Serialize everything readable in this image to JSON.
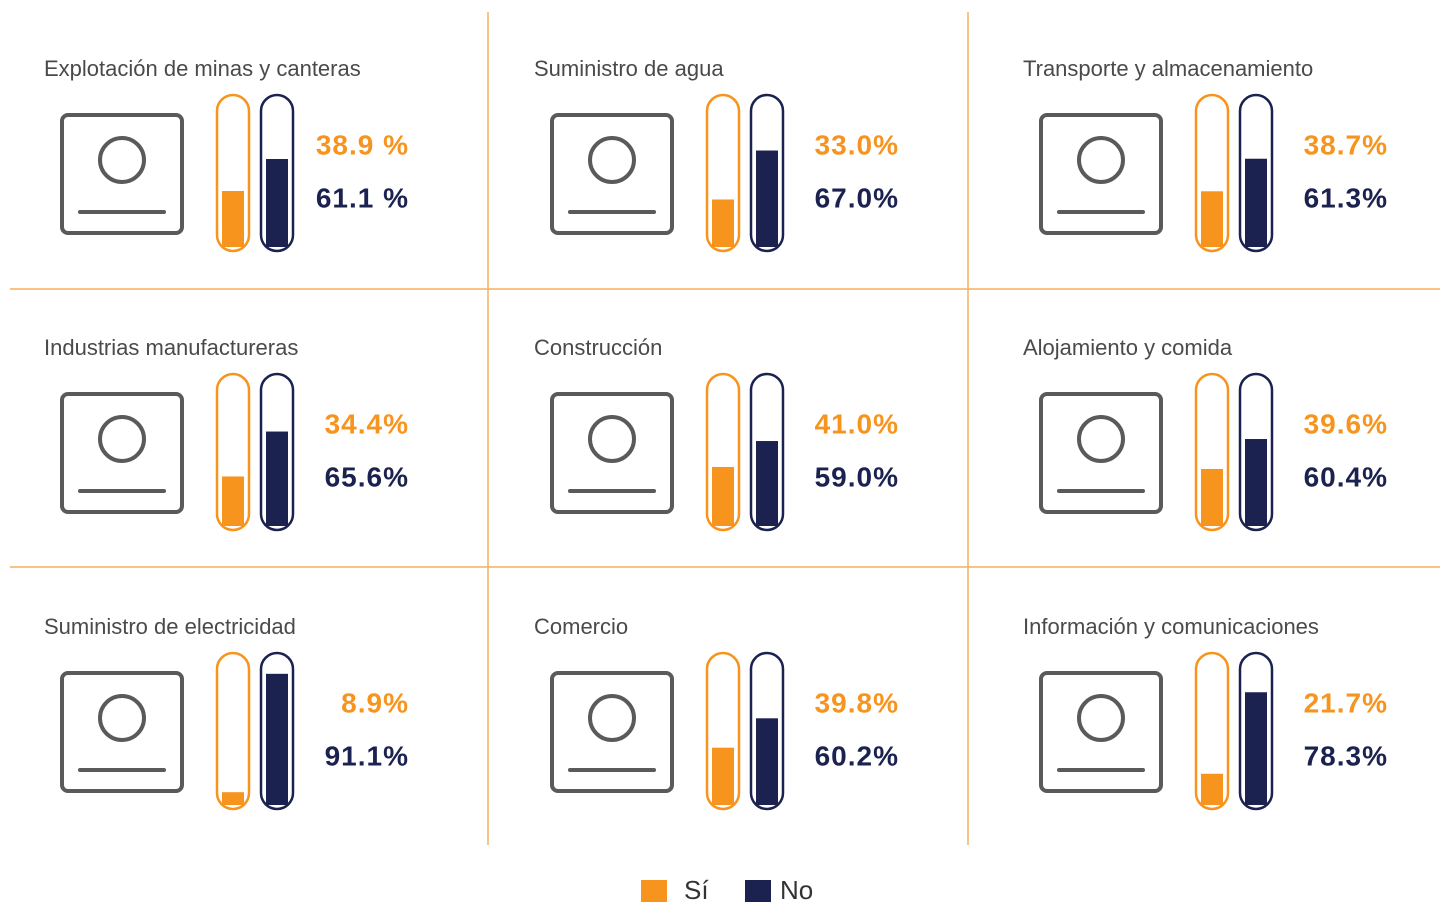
{
  "chart_data": {
    "type": "tube",
    "categories": [
      "Explotación de minas y canteras",
      "Suministro de agua",
      "Transporte y almacenamiento",
      "Industrias manufactureras",
      "Construcción",
      "Alojamiento y comida",
      "Suministro de electricidad",
      "Comercio",
      "Información y comunicaciones"
    ],
    "series": [
      {
        "name": "Sí",
        "color": "#f7941d",
        "values": [
          38.9,
          33.0,
          38.7,
          34.4,
          41.0,
          39.6,
          8.9,
          39.8,
          21.7
        ],
        "value_labels": [
          "38.9 %",
          "33.0%",
          "38.7%",
          "34.4%",
          "41.0%",
          "39.6%",
          "8.9%",
          "39.8%",
          "21.7%"
        ]
      },
      {
        "name": "No",
        "color": "#1b2250",
        "values": [
          61.1,
          67.0,
          61.3,
          65.6,
          59.0,
          60.4,
          91.1,
          60.2,
          78.3
        ],
        "value_labels": [
          "61.1 %",
          "67.0%",
          "61.3%",
          "65.6%",
          "59.0%",
          "60.4%",
          "91.1%",
          "60.2%",
          "78.3%"
        ]
      }
    ],
    "ylim": [
      0,
      100
    ]
  }
}
